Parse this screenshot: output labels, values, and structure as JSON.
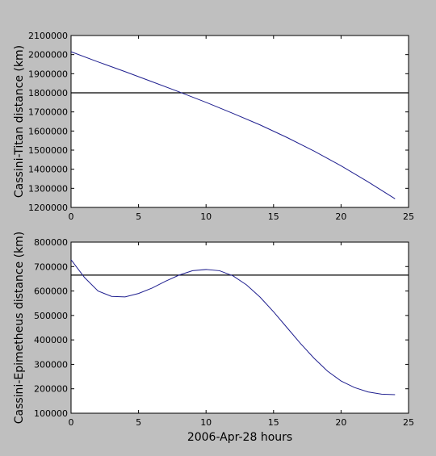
{
  "chart_data": [
    {
      "type": "line",
      "title": "",
      "xlabel": "",
      "ylabel": "Cassini-Titan distance (km)",
      "xlim": [
        0,
        25
      ],
      "ylim": [
        1200000,
        2100000
      ],
      "xticks": [
        0,
        5,
        10,
        15,
        20,
        25
      ],
      "yticks": [
        1200000,
        1300000,
        1400000,
        1500000,
        1600000,
        1700000,
        1800000,
        1900000,
        2000000,
        2100000
      ],
      "grid": false,
      "threshold": 1800000,
      "series": [
        {
          "color": "#1f1f8f",
          "x": [
            0,
            2,
            4,
            6,
            8,
            10,
            12,
            14,
            16,
            18,
            20,
            22,
            24
          ],
          "y": [
            2015000,
            1962000,
            1911000,
            1858000,
            1805000,
            1750000,
            1692000,
            1632000,
            1566000,
            1495000,
            1418000,
            1334000,
            1245000
          ]
        }
      ]
    },
    {
      "type": "line",
      "title": "",
      "xlabel": "2006-Apr-28 hours",
      "ylabel": "Cassini-Epimetheus distance (km)",
      "xlim": [
        0,
        25
      ],
      "ylim": [
        100000,
        800000
      ],
      "xticks": [
        0,
        5,
        10,
        15,
        20,
        25
      ],
      "yticks": [
        100000,
        200000,
        300000,
        400000,
        500000,
        600000,
        700000,
        800000
      ],
      "grid": false,
      "threshold": 665000,
      "series": [
        {
          "color": "#1f1f8f",
          "x": [
            0,
            1,
            2,
            3,
            4,
            5,
            6,
            7,
            8,
            9,
            10,
            11,
            12,
            13,
            14,
            15,
            16,
            17,
            18,
            19,
            20,
            21,
            22,
            23,
            24
          ],
          "y": [
            728000,
            655000,
            600000,
            578000,
            576000,
            590000,
            612000,
            640000,
            665000,
            683000,
            688000,
            683000,
            662000,
            625000,
            575000,
            515000,
            450000,
            385000,
            325000,
            272000,
            232000,
            205000,
            187000,
            178000,
            176000
          ]
        }
      ]
    }
  ]
}
